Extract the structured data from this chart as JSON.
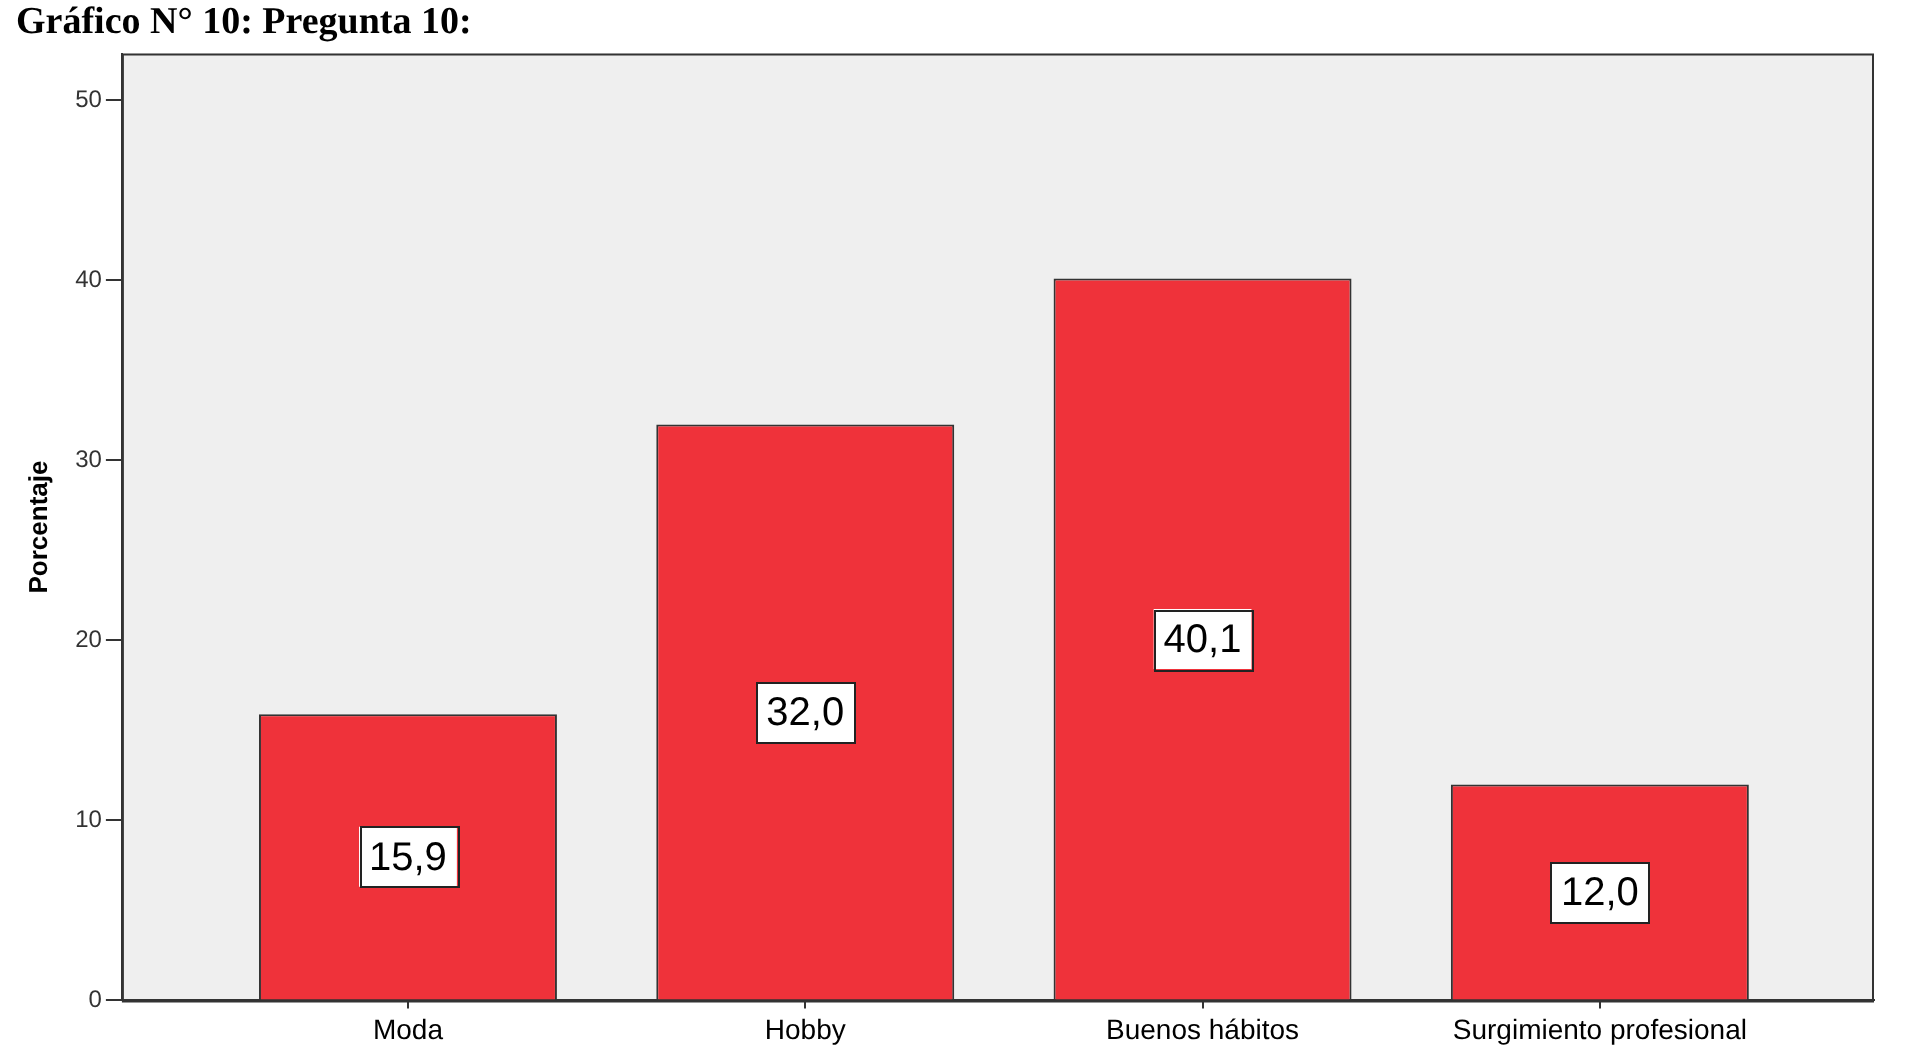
{
  "chart_data": {
    "type": "bar",
    "title": "Gráfico N° 10: Pregunta 10:",
    "ylabel": "Porcentaje",
    "categories": [
      "Moda",
      "Hobby",
      "Buenos hábitos",
      "Surgimiento profesional"
    ],
    "values": [
      15.9,
      32.0,
      40.1,
      12.0
    ],
    "value_labels": [
      "15,9",
      "32,0",
      "40,1",
      "12,0"
    ],
    "color": "#ef323a",
    "ylim": [
      0,
      52.6
    ],
    "yticks": [
      0,
      10,
      20,
      30,
      40,
      50
    ]
  }
}
